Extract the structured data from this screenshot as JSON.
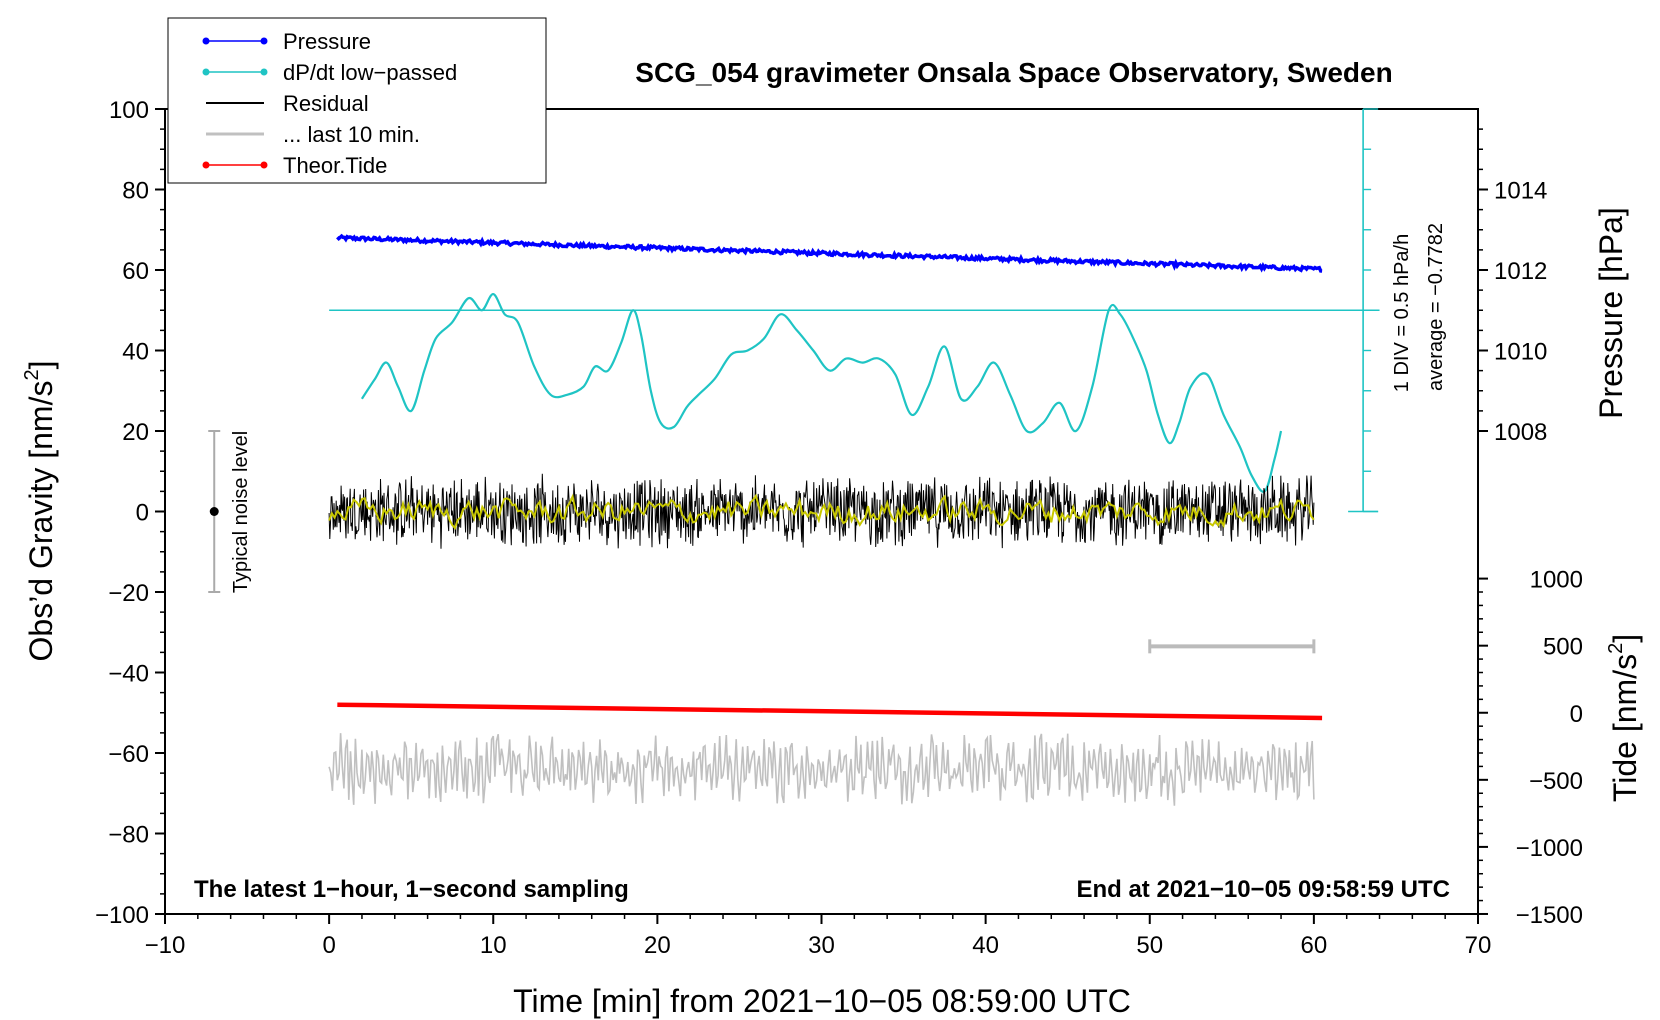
{
  "chart_data": {
    "type": "line",
    "title": "SCG_054 gravimeter Onsala Space Observatory, Sweden",
    "xlabel": "Time [min] from 2021−10−05 08:59:00 UTC",
    "ylabel_prefix": "Obs’d Gravity [nm/s",
    "ylabel_sup": "2",
    "ylabel_suffix": "]",
    "y2label": "Pressure [hPa]",
    "y3label_prefix": "Tide [nm/s",
    "y3label_sup": "2",
    "y3label_suffix": "]",
    "xlim": [
      -10,
      70
    ],
    "ylim": [
      -100,
      100
    ],
    "x_ticks": [
      -10,
      0,
      10,
      20,
      30,
      40,
      50,
      60,
      70
    ],
    "x_tick_labels": [
      "−10",
      "0",
      "10",
      "20",
      "30",
      "40",
      "50",
      "60",
      "70"
    ],
    "y_ticks": [
      -100,
      -80,
      -60,
      -40,
      -20,
      0,
      20,
      40,
      60,
      80,
      100
    ],
    "y_tick_labels": [
      "−100",
      "−80",
      "−60",
      "−40",
      "−20",
      "0",
      "20",
      "40",
      "60",
      "80",
      "100"
    ],
    "pressure_axis": {
      "ticks": [
        1008,
        1010,
        1012,
        1014
      ],
      "tick_labels": [
        "1008",
        "1010",
        "1012",
        "1014"
      ],
      "gravity_equivalent": {
        "1008": 20,
        "1010": 40,
        "1012": 60,
        "1014": 80
      }
    },
    "tide_axis": {
      "ticks": [
        -1500,
        -1000,
        -500,
        0,
        500,
        1000
      ],
      "tick_labels": [
        "−1500",
        "−1000",
        "−500",
        "0",
        "500",
        "1000"
      ],
      "gravity_equivalent_of_0": -50,
      "gravity_per_1000": 33.33
    },
    "legend": [
      {
        "label": "Pressure",
        "color": "#0000ff",
        "marker": true
      },
      {
        "label": "dP/dt low−passed",
        "color": "#1fc4c4",
        "marker": true
      },
      {
        "label": "Residual",
        "color": "#000000",
        "marker": false
      },
      {
        "label": "... last 10 min.",
        "color": "#c0c0c0",
        "marker": false
      },
      {
        "label": "Theor.Tide",
        "color": "#ff0000",
        "marker": true
      }
    ],
    "series": [
      {
        "name": "Pressure",
        "color": "#0000ff",
        "x_range": [
          0.5,
          60.5
        ],
        "gravity_units_start": 68.0,
        "gravity_units_end": 60.2
      },
      {
        "name": "dP/dt low−passed",
        "color": "#1fc4c4",
        "x": [
          2,
          2.8,
          3.5,
          4.2,
          5,
          5.8,
          6.5,
          7.5,
          8.5,
          9.3,
          10,
          10.7,
          11.5,
          12.5,
          13.5,
          14.5,
          15.5,
          16.2,
          17,
          17.8,
          18.5,
          19,
          19.6,
          20.2,
          21,
          21.8,
          22.5,
          23.5,
          24.5,
          25.5,
          26.5,
          27.5,
          28.5,
          29.5,
          30.5,
          31.5,
          32.5,
          33.5,
          34.5,
          35.5,
          36.5,
          37.5,
          38.5,
          39.5,
          40.5,
          41.5,
          42.5,
          43.5,
          44.5,
          45.5,
          46.5,
          47.5,
          48.2,
          49,
          49.8,
          50.5,
          51.2,
          51.8,
          52.5,
          53.5,
          54.5,
          55.5,
          56.2,
          57,
          57.6,
          58
        ],
        "y": [
          28,
          33,
          37,
          31,
          25,
          35,
          43,
          47,
          53,
          50,
          54,
          49,
          47,
          36,
          29,
          29,
          31,
          36,
          35,
          42,
          50,
          44,
          30,
          22,
          21,
          26,
          29,
          33,
          39,
          40,
          43,
          49,
          45,
          40,
          35,
          38,
          37,
          38,
          34,
          24,
          31,
          41,
          28,
          31,
          37,
          29,
          20,
          22,
          27,
          20,
          31,
          50,
          49,
          43,
          35,
          24,
          17,
          22,
          31,
          34,
          24,
          16,
          9,
          5,
          13,
          20
        ]
      },
      {
        "name": "Residual",
        "color": "#000000",
        "x_range": [
          0,
          60
        ],
        "mean": 0,
        "amplitude": 8
      },
      {
        "name": "Residual smoothed",
        "color": "#c8c800",
        "x_range": [
          0,
          60
        ],
        "mean": 0,
        "amplitude": 2.5
      },
      {
        "name": "Theor.Tide",
        "color": "#ff0000",
        "x_range": [
          0.5,
          60.5
        ],
        "gravity_units_start": -48.0,
        "gravity_units_end": -51.3
      },
      {
        "name": "... last 10 min.",
        "color": "#c0c0c0",
        "x_range": [
          0,
          60
        ],
        "mean": -64,
        "amplitude": 7
      }
    ],
    "annotations": {
      "dpdt_reference": {
        "y": 50,
        "x_start": 0,
        "x_end": 64
      },
      "scale_label": "1 DIV = 0.5 hPa/h",
      "average_label": "average = −0.7782",
      "noise_label": "Typical noise level",
      "noise_bar": {
        "x": -7,
        "y_low": -20,
        "y_high": 20,
        "center": 0
      },
      "last10_bar": {
        "x_start": 50,
        "x_end": 60,
        "y": -33.5
      },
      "footer_left": "The latest 1−hour, 1−second sampling",
      "footer_right": "End at 2021−10−05 09:58:59 UTC"
    }
  }
}
